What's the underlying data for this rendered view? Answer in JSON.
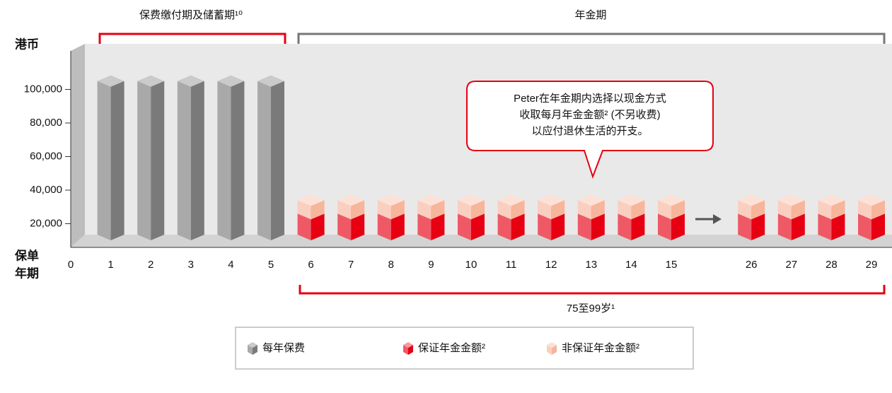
{
  "chart_data": {
    "type": "bar",
    "stacked": true,
    "ylabel": "港币",
    "xlabel": [
      "保单",
      "年期"
    ],
    "categories": [
      "0",
      "1",
      "2",
      "3",
      "4",
      "5",
      "6",
      "7",
      "8",
      "9",
      "10",
      "11",
      "12",
      "13",
      "14",
      "15",
      "26",
      "27",
      "28",
      "29"
    ],
    "series": [
      {
        "name": "每年保费",
        "color": "#7a7a7a",
        "values": [
          null,
          105000,
          105000,
          105000,
          105000,
          105000,
          null,
          null,
          null,
          null,
          null,
          null,
          null,
          null,
          null,
          null,
          null,
          null,
          null,
          null
        ]
      },
      {
        "name": "保证年金金额²",
        "color": "#e60012",
        "values": [
          null,
          null,
          null,
          null,
          null,
          null,
          26000,
          26000,
          26000,
          26000,
          26000,
          26000,
          26000,
          26000,
          26000,
          26000,
          26000,
          26000,
          26000,
          26000
        ]
      },
      {
        "name": "非保证年金金额²",
        "color": "#f7b59c",
        "values": [
          null,
          null,
          null,
          null,
          null,
          null,
          8000,
          8000,
          8000,
          8000,
          8000,
          8000,
          8000,
          8000,
          8000,
          8000,
          8000,
          8000,
          8000,
          8000
        ]
      }
    ],
    "ylim": [
      0,
      120000
    ],
    "yticks": [
      {
        "value": 20000,
        "label": "20,000"
      },
      {
        "value": 40000,
        "label": "40,000"
      },
      {
        "value": 60000,
        "label": "60,000"
      },
      {
        "value": 80000,
        "label": "80,000"
      },
      {
        "value": 100000,
        "label": "100,000"
      }
    ],
    "periods": {
      "payment": "保费缴付期及储蓄期¹⁰",
      "annuity": "年金期",
      "age": "75至99岁¹"
    },
    "callout": [
      "Peter在年金期内选择以现金方式",
      "收取每月年金金额² (不另收费)",
      "以应付退休生活的开支。"
    ]
  }
}
